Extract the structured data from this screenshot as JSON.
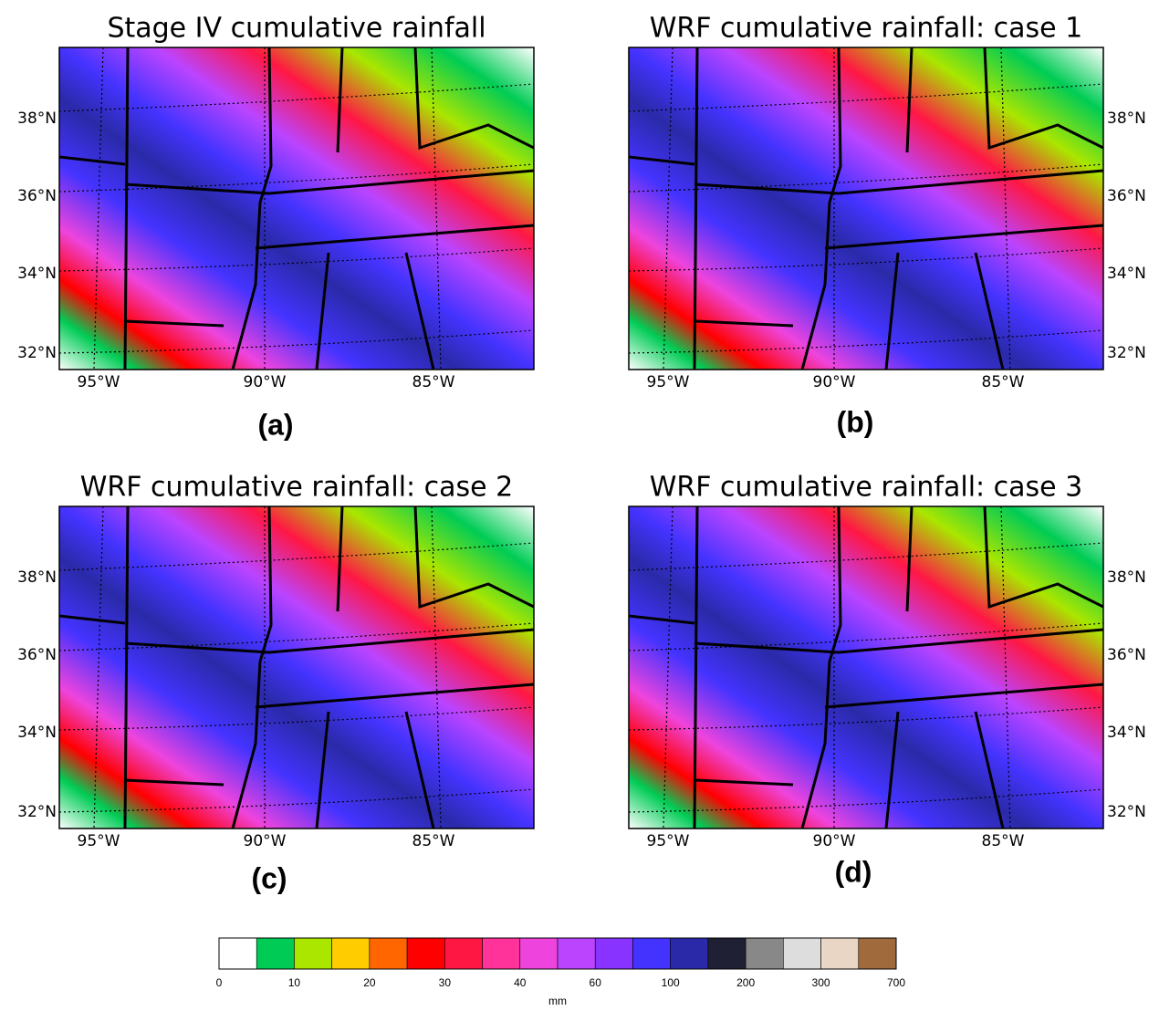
{
  "panels": [
    {
      "title": "Stage IV cumulative rainfall",
      "label": "(a)",
      "lat_labels": [
        "38°N",
        "36°N",
        "34°N",
        "32°N"
      ],
      "lon_labels": [
        "95°W",
        "90°W",
        "85°W"
      ]
    },
    {
      "title": "WRF cumulative rainfall: case 1",
      "label": "(b)",
      "lat_labels": [
        "38°N",
        "36°N",
        "34°N",
        "32°N"
      ],
      "lon_labels": [
        "95°W",
        "90°W",
        "85°W"
      ]
    },
    {
      "title": "WRF cumulative rainfall: case 2",
      "label": "(c)",
      "lat_labels": [
        "38°N",
        "36°N",
        "34°N",
        "32°N"
      ],
      "lon_labels": [
        "95°W",
        "90°W",
        "85°W"
      ]
    },
    {
      "title": "WRF cumulative rainfall: case 3",
      "label": "(d)",
      "lat_labels": [
        "38°N",
        "36°N",
        "34°N",
        "32°N"
      ],
      "lon_labels": [
        "95°W",
        "90°W",
        "85°W"
      ]
    }
  ],
  "colorbar": {
    "colors": [
      "#ffffff",
      "#00cc55",
      "#aae600",
      "#ffcc00",
      "#ff6600",
      "#ff0000",
      "#ff1744",
      "#ff3399",
      "#ee44dd",
      "#bb44ff",
      "#8833ff",
      "#4433ff",
      "#2a2aa8",
      "#202035",
      "#888888",
      "#dddddd",
      "#ead6c4",
      "#a06a3c"
    ],
    "ticks": [
      "0",
      "10",
      "20",
      "30",
      "40",
      "60",
      "100",
      "200",
      "300",
      "700"
    ],
    "unit": "mm"
  }
}
